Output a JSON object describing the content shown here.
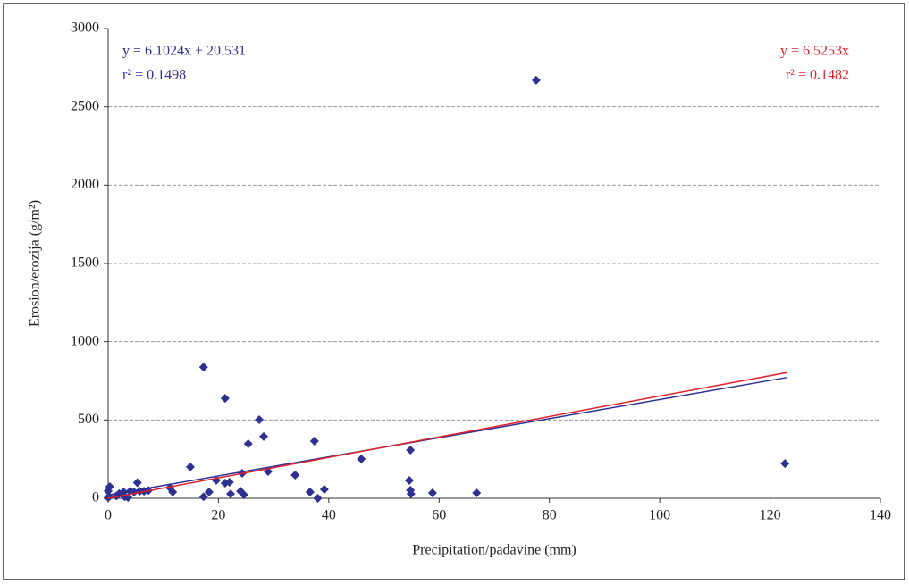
{
  "chart_data": {
    "type": "scatter",
    "x_label": "Precipitation/padavine (mm)",
    "y_label": "Erosion/erozija (g/m²)",
    "xlim": [
      0,
      140
    ],
    "xticks": [
      0,
      20,
      40,
      60,
      80,
      100,
      120,
      140
    ],
    "ylim": [
      0,
      3000
    ],
    "yticks": [
      0,
      500,
      1000,
      1500,
      2000,
      2500,
      3000
    ],
    "grid": true,
    "series": [
      {
        "type": "scatter",
        "color": "#2e3192",
        "x": [
          0.3,
          0,
          0.2,
          0,
          1.5,
          2,
          2.8,
          3,
          3.6,
          4,
          4.7,
          5.3,
          5.7,
          6.5,
          7.3,
          11.2,
          11.7,
          14.9,
          17.3,
          17.3,
          18.3,
          19.6,
          21.2,
          21.2,
          22,
          22.2,
          24,
          24.3,
          24.6,
          25.4,
          27.4,
          28.2,
          29,
          33.9,
          36.6,
          37.4,
          38,
          39.2,
          45.9,
          54.6,
          54.8,
          54.8,
          54.9,
          58.8,
          66.8,
          77.6,
          122.7
        ],
        "values": [
          74,
          46,
          10,
          5,
          15,
          30,
          40,
          10,
          5,
          45,
          40,
          100,
          45,
          45,
          50,
          68,
          40,
          200,
          838,
          10,
          40,
          115,
          638,
          97,
          103,
          28,
          45,
          160,
          23,
          348,
          502,
          394,
          171,
          148,
          40,
          365,
          0,
          57,
          251,
          114,
          308,
          51,
          28,
          34,
          34,
          2670,
          222
        ]
      },
      {
        "type": "line",
        "color": "#2e3192",
        "x": [
          0,
          123
        ],
        "values": [
          21,
          771
        ]
      },
      {
        "type": "line",
        "color": "#e0202a",
        "x": [
          0,
          123
        ],
        "values": [
          0,
          803
        ]
      }
    ],
    "annotations": [
      {
        "lines": [
          "y = 6.1024x + 20.531",
          "r² = 0.1498"
        ],
        "color": "#2e3192",
        "corner": "upper left"
      },
      {
        "lines": [
          "y = 6.5253x",
          "r² = 0.1482"
        ],
        "color": "#e0202a",
        "corner": "upper right"
      }
    ]
  }
}
